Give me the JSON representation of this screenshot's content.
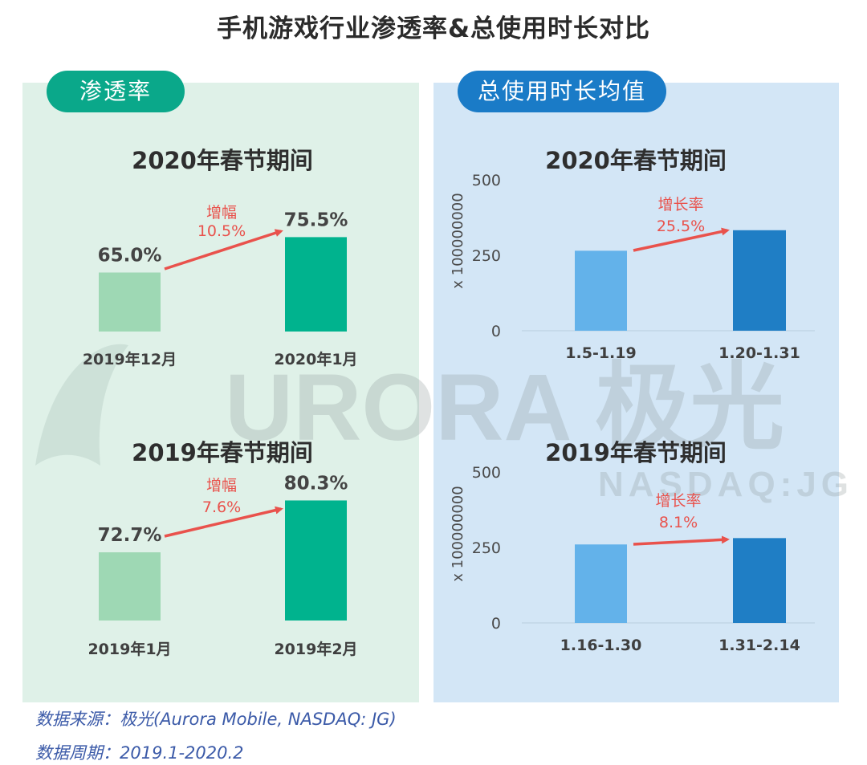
{
  "title": "手机游戏行业渗透率&总使用时长对比",
  "panels": {
    "left": {
      "label": "渗透率"
    },
    "right": {
      "label": "总使用时长均值"
    }
  },
  "watermark": {
    "logo": "URORA 极光",
    "ticker": "NASDAQ:JG"
  },
  "colors": {
    "penetration_prev": "#9ed8b4",
    "penetration_curr": "#00b38e",
    "duration_prev": "#63b2ea",
    "duration_curr": "#1f7ec5",
    "arrow": "#e9524c",
    "growth_text": "#e9524c"
  },
  "chart_data": [
    {
      "id": "penetration-2020",
      "type": "bar",
      "title": "2020年春节期间",
      "categories": [
        "2019年12月",
        "2020年1月"
      ],
      "values": [
        65.0,
        75.5
      ],
      "value_labels": [
        "65.0%",
        "75.5%"
      ],
      "growth_label": "增幅",
      "growth_value": "10.5%",
      "ylim": [
        0,
        100
      ]
    },
    {
      "id": "penetration-2019",
      "type": "bar",
      "title": "2019年春节期间",
      "categories": [
        "2019年1月",
        "2019年2月"
      ],
      "values": [
        72.7,
        80.3
      ],
      "value_labels": [
        "72.7%",
        "80.3%"
      ],
      "growth_label": "增幅",
      "growth_value": "7.6%",
      "ylim": [
        0,
        100
      ]
    },
    {
      "id": "duration-2020",
      "type": "bar",
      "title": "2020年春节期间",
      "categories": [
        "1.5-1.19",
        "1.20-1.31"
      ],
      "values": [
        265,
        333
      ],
      "ylabel": "x 100000000",
      "yticks": [
        0,
        250,
        500
      ],
      "ylim": [
        0,
        500
      ],
      "growth_label": "增长率",
      "growth_value": "25.5%"
    },
    {
      "id": "duration-2019",
      "type": "bar",
      "title": "2019年春节期间",
      "categories": [
        "1.16-1.30",
        "1.31-2.14"
      ],
      "values": [
        260,
        281
      ],
      "ylabel": "x 100000000",
      "yticks": [
        0,
        250,
        500
      ],
      "ylim": [
        0,
        500
      ],
      "growth_label": "增长率",
      "growth_value": "8.1%"
    }
  ],
  "source": {
    "line1": "数据来源：极光(Aurora Mobile, NASDAQ: JG)",
    "line2": "数据周期：2019.1-2020.2"
  }
}
